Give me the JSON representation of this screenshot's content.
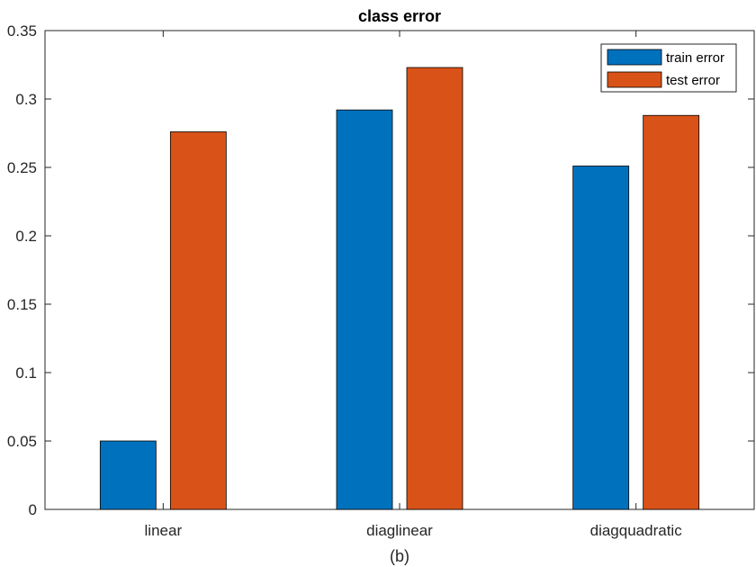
{
  "chart_data": {
    "type": "bar",
    "title": "class error",
    "xlabel": "(b)",
    "ylabel": "",
    "categories": [
      "linear",
      "diaglinear",
      "diagquadratic"
    ],
    "series": [
      {
        "name": "train error",
        "color": "#0072BD",
        "values": [
          0.05,
          0.292,
          0.251
        ]
      },
      {
        "name": "test error",
        "color": "#D95319",
        "values": [
          0.276,
          0.323,
          0.288
        ]
      }
    ],
    "ylim": [
      0,
      0.35
    ],
    "yticks": [
      0,
      0.05,
      0.1,
      0.15,
      0.2,
      0.25,
      0.3,
      0.35
    ],
    "ytick_labels": [
      "0",
      "0.05",
      "0.1",
      "0.15",
      "0.2",
      "0.25",
      "0.3",
      "0.35"
    ],
    "grid": false,
    "legend_position": "top-right"
  }
}
